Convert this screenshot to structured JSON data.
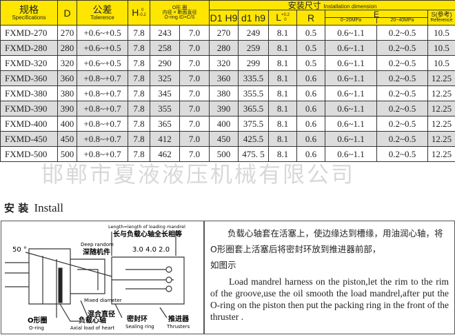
{
  "header": {
    "spec_cn": "规格",
    "spec_en": "Specifications",
    "d": "D",
    "tol_cn": "公差",
    "tol_en": "Tolerence",
    "h": "H",
    "h_sup": "0",
    "h_sub": "-0.2",
    "oring_l1": "O形 圈",
    "oring_l2": "内径 × 断面直径",
    "oring_l3": "O-ring ID×C/S",
    "install_cn": "安装尺寸",
    "install_en": "Installation dimension",
    "d1h9": "D1 H9",
    "d1h9_small": "d1 h9",
    "l": "L",
    "l_sup": "+0.2",
    "l_sub": "0",
    "r": "R",
    "e": "E",
    "e1": "0~20MPa",
    "e2": "20~40MPa",
    "s": "S(参考)",
    "s_en": "Reference"
  },
  "rows": [
    [
      "FXMD-270",
      "270",
      "+0.6~+0.5",
      "7.8",
      "243",
      "7.0",
      "270",
      "249",
      "8.1",
      "0.5",
      "0.6~1.1",
      "0.2~0.5",
      "10.5"
    ],
    [
      "FXMD-280",
      "280",
      "+0.6~+0.5",
      "7.8",
      "258",
      "7.0",
      "280",
      "259",
      "8.1",
      "0.5",
      "0.6~1.1",
      "0.2~0.5",
      "10.5"
    ],
    [
      "FXMD-320",
      "320",
      "+0.6~+0.5",
      "7.8",
      "290",
      "7.0",
      "320",
      "299",
      "8.1",
      "0.5",
      "0.6~1.1",
      "0.2~0.5",
      "10.5"
    ],
    [
      "FXMD-360",
      "360",
      "+0.8~+0.7",
      "7.8",
      "325",
      "7.0",
      "360",
      "335.5",
      "8.1",
      "0.6",
      "0.6~1.1",
      "0.2~0.5",
      "12.25"
    ],
    [
      "FXMD-380",
      "380",
      "+0.8~+0.7",
      "7.8",
      "345",
      "7.0",
      "380",
      "355.5",
      "8.1",
      "0.6",
      "0.6~1.1",
      "0.2~0.5",
      "12.25"
    ],
    [
      "FXMD-390",
      "390",
      "+0.8~+0.7",
      "7.8",
      "355",
      "7.0",
      "390",
      "365.5",
      "8.1",
      "0.6",
      "0.6~1.1",
      "0.2~0.5",
      "12.25"
    ],
    [
      "FXMD-400",
      "400",
      "+0.8~+0.7",
      "7.8",
      "365",
      "7.0",
      "400",
      "375.5",
      "8.1",
      "0.6",
      "0.6~1.1",
      "0.2~0.5",
      "12.25"
    ],
    [
      "FXMD-450",
      "450",
      "+0.8~+0.7",
      "7.8",
      "412",
      "7.0",
      "450",
      "425.5",
      "8.1",
      "0.6",
      "0.6~1.1",
      "0.2~0.5",
      "12.25"
    ],
    [
      "FXMD-500",
      "500",
      "+0.8~+0.7",
      "7.8",
      "462",
      "7.0",
      "500",
      "475. 5",
      "8.1",
      "0.6",
      "0.6~1.1",
      "0.2~0.5",
      "12.25"
    ]
  ],
  "watermark": "邯郸市夏液液压机械有限公司",
  "install": {
    "title_cn": "安 装",
    "title_en": "Install",
    "diagram": {
      "length_en": "Length=length of loading mandrel",
      "length_cn": "长与负载心轴全长相等",
      "deep_en": "Deep random",
      "deep_cn": "深随机件",
      "angle": "50 °",
      "dims": "3.0  4.0  2.0",
      "mixed_en": "Mixed diameter",
      "mixed_cn": "混合直径",
      "oring_cn": "O形圈",
      "oring_en": "O-ring",
      "load_cn": "负载心轴",
      "load_en": "Axial load of heart",
      "seal_cn": "密封环",
      "seal_en": "Sealing ring",
      "thr_cn": "推进器",
      "thr_en": "Thrusters"
    },
    "text_cn_1": "负载心轴套在活塞上，使边缘达到槽缘，用油润心轴，将O形圈套上活塞后将密封环放到推进器前部，",
    "text_cn_2": "如图示",
    "text_en": "Load mandrel harness on the piston,let the rim to the rim of the groove,use the oil smooth the load mandrel,after put the O-ring on the piston then put the packing ring in the front of the thruster ."
  }
}
